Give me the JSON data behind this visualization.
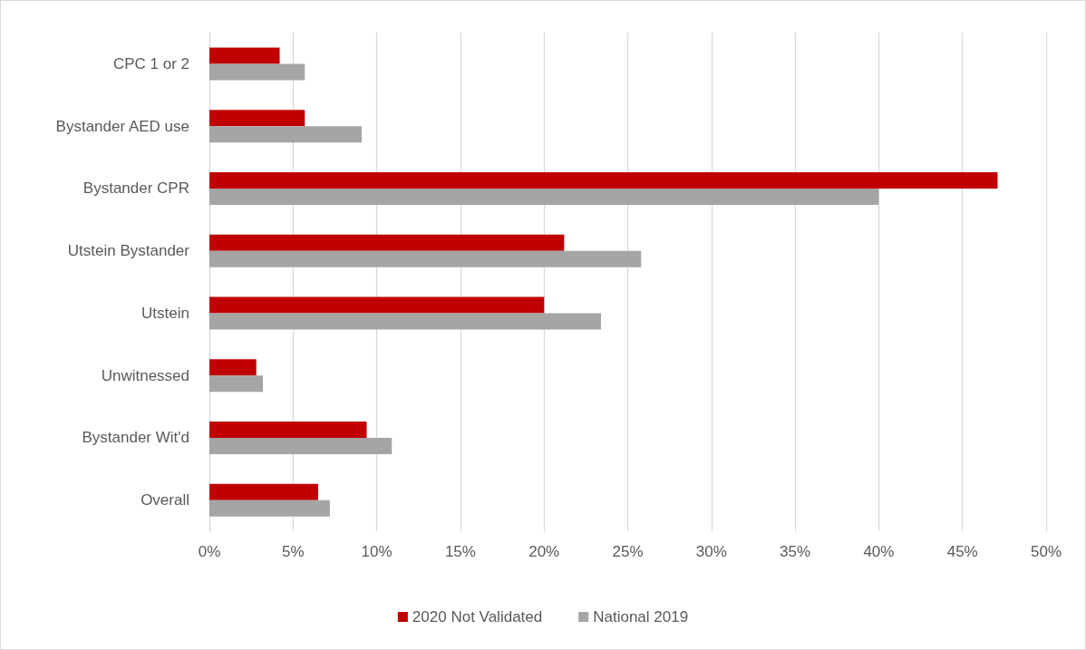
{
  "chart_data": {
    "type": "bar",
    "orientation": "horizontal",
    "categories": [
      "CPC 1 or 2",
      "Bystander AED use",
      "Bystander CPR",
      "Utstein Bystander",
      "Utstein",
      "Unwitnessed",
      "Bystander Wit'd",
      "Overall"
    ],
    "series": [
      {
        "name": "2020 Not Validated",
        "color": "#c00000",
        "values": [
          4.2,
          5.7,
          47.1,
          21.2,
          20.0,
          2.8,
          9.4,
          6.5
        ]
      },
      {
        "name": "National 2019",
        "color": "#a5a5a5",
        "values": [
          5.7,
          9.1,
          40.0,
          25.8,
          23.4,
          3.2,
          10.9,
          7.2
        ]
      }
    ],
    "xlim": [
      0,
      50
    ],
    "xticks": [
      {
        "value": 0,
        "label": "0%"
      },
      {
        "value": 5,
        "label": "5%"
      },
      {
        "value": 10,
        "label": "10%"
      },
      {
        "value": 15,
        "label": "15%"
      },
      {
        "value": 20,
        "label": "20%"
      },
      {
        "value": 25,
        "label": "25%"
      },
      {
        "value": 30,
        "label": "30%"
      },
      {
        "value": 35,
        "label": "35%"
      },
      {
        "value": 40,
        "label": "40%"
      },
      {
        "value": 45,
        "label": "45%"
      },
      {
        "value": 50,
        "label": "50%"
      }
    ],
    "grid": "x",
    "legend": "bottom"
  }
}
